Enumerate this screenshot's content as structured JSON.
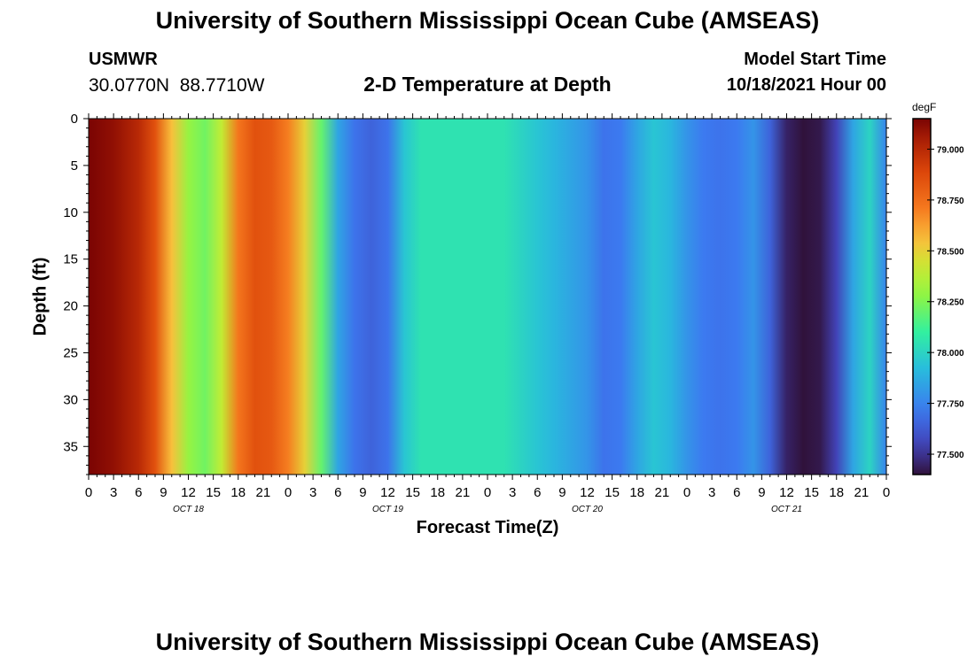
{
  "title": "University of Southern Mississippi Ocean Cube (AMSEAS)",
  "station": {
    "id": "USMWR",
    "coords": "30.0770N  88.7710W"
  },
  "model_start": {
    "label": "Model Start Time",
    "value": "10/18/2021 Hour 00"
  },
  "colorbar": {
    "unit": "degF",
    "min": 77.4,
    "max": 79.15,
    "tick_values": [
      79.0,
      78.75,
      78.5,
      78.25,
      78.0,
      77.75,
      77.5
    ],
    "tick_labels": [
      "79.000",
      "78.750",
      "78.500",
      "78.250",
      "78.000",
      "77.750",
      "77.500"
    ]
  },
  "chart_data": {
    "type": "heatmap",
    "subtitle": "2-D Temperature at Depth",
    "xlabel": "Forecast Time(Z)",
    "ylabel": "Depth (ft)",
    "x_range_hours": [
      0,
      96
    ],
    "y_range_ft": [
      0,
      38
    ],
    "y_inverted": true,
    "x_tick_labels": [
      "0",
      "3",
      "6",
      "9",
      "12",
      "15",
      "18",
      "21",
      "0",
      "3",
      "6",
      "9",
      "12",
      "15",
      "18",
      "21",
      "0",
      "3",
      "6",
      "9",
      "12",
      "15",
      "18",
      "21",
      "0",
      "3",
      "6",
      "9",
      "12",
      "15",
      "18",
      "21",
      "0"
    ],
    "y_ticks": [
      0,
      5,
      10,
      15,
      20,
      25,
      30,
      35
    ],
    "date_labels": [
      {
        "hour": 12,
        "text": "OCT 18"
      },
      {
        "hour": 36,
        "text": "OCT 19"
      },
      {
        "hour": 60,
        "text": "OCT 20"
      },
      {
        "hour": 84,
        "text": "OCT 21"
      }
    ],
    "temperature_profile_degF": {
      "hours": [
        0,
        3,
        6,
        8,
        10,
        12,
        14,
        16,
        18,
        20,
        22,
        24,
        26,
        28,
        30,
        32,
        34,
        36,
        38,
        40,
        42,
        44,
        46,
        48,
        50,
        52,
        54,
        56,
        58,
        60,
        62,
        64,
        66,
        68,
        70,
        72,
        74,
        76,
        78,
        80,
        82,
        84,
        86,
        88,
        90,
        92,
        94,
        96
      ],
      "values": [
        79.15,
        79.1,
        79.0,
        78.85,
        78.55,
        78.3,
        78.22,
        78.4,
        78.72,
        78.85,
        78.82,
        78.7,
        78.5,
        78.2,
        77.85,
        77.7,
        77.65,
        77.7,
        77.95,
        78.05,
        78.05,
        78.05,
        78.05,
        78.05,
        78.05,
        78.0,
        77.95,
        77.9,
        77.85,
        77.8,
        77.7,
        77.72,
        77.85,
        77.95,
        77.9,
        77.8,
        77.72,
        77.7,
        77.72,
        77.8,
        77.65,
        77.45,
        77.4,
        77.42,
        77.55,
        77.85,
        78.0,
        77.75
      ]
    }
  }
}
